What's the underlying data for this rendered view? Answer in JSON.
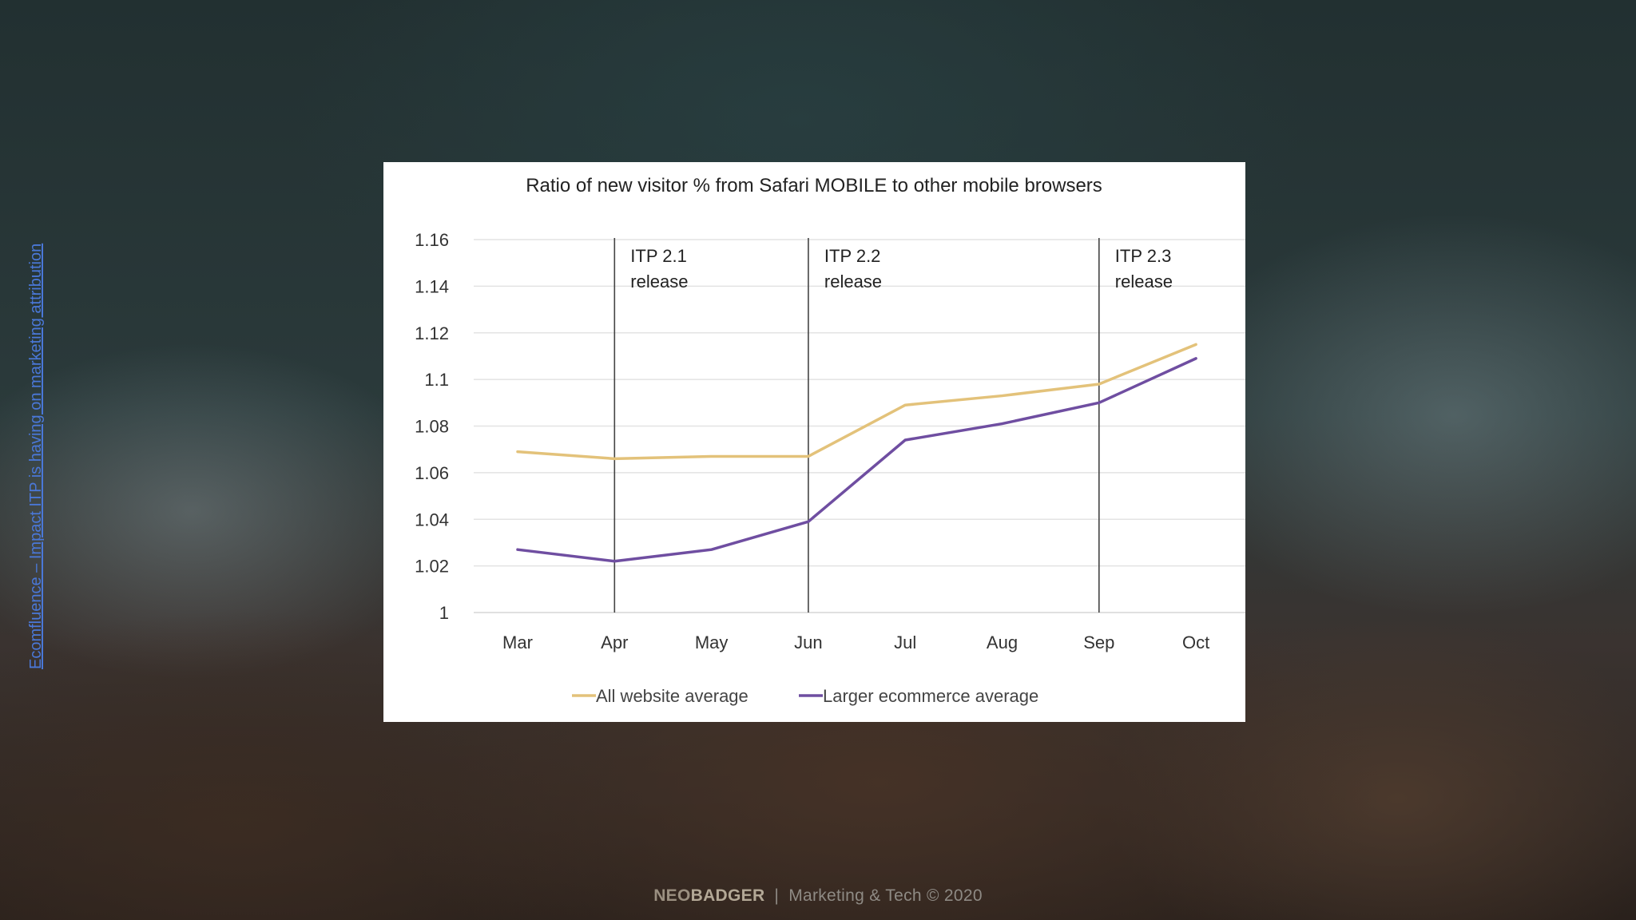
{
  "side_link": "Ecomfluence – Impact ITP is having on marketing attribution",
  "footer": {
    "brand_neo": "NEO",
    "brand_badger": "BADGER",
    "separator": "|",
    "tagline": "Marketing & Tech © 2020"
  },
  "chart_data": {
    "type": "line",
    "title": "Ratio of new visitor % from Safari MOBILE to other mobile browsers",
    "xlabel": "",
    "ylabel": "",
    "categories": [
      "Mar",
      "Apr",
      "May",
      "Jun",
      "Jul",
      "Aug",
      "Sep",
      "Oct"
    ],
    "ylim": [
      1,
      1.16
    ],
    "yticks": [
      "1",
      "1.02",
      "1.04",
      "1.06",
      "1.08",
      "1.1",
      "1.12",
      "1.14",
      "1.16"
    ],
    "grid": true,
    "legend": "bottom",
    "series": [
      {
        "name": "All website average",
        "color": "#e3c27a",
        "values": [
          1.069,
          1.066,
          1.067,
          1.067,
          1.089,
          1.093,
          1.098,
          1.115
        ]
      },
      {
        "name": "Larger ecommerce average",
        "color": "#6f4ea1",
        "values": [
          1.027,
          1.022,
          1.027,
          1.039,
          1.074,
          1.081,
          1.09,
          1.109
        ]
      }
    ],
    "annotations": [
      {
        "line1": "ITP 2.1",
        "line2": "release",
        "x": 1.0
      },
      {
        "line1": "ITP 2.2",
        "line2": "release",
        "x": 3.0
      },
      {
        "line1": "ITP 2.3",
        "line2": "release",
        "x": 6.0
      }
    ]
  }
}
